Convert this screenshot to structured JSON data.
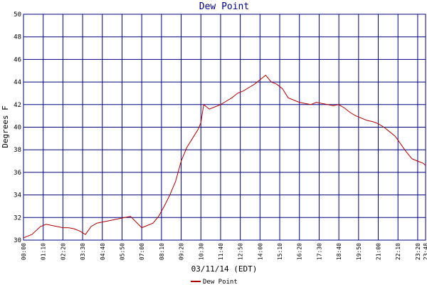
{
  "chart_data": {
    "type": "line",
    "title": "Dew Point",
    "xlabel": "03/11/14 (EDT)",
    "ylabel": "Degrees F",
    "ylim": [
      30,
      50
    ],
    "yticks": [
      30,
      32,
      34,
      36,
      38,
      40,
      42,
      44,
      46,
      48,
      50
    ],
    "xticks": [
      "00:00",
      "01:10",
      "02:20",
      "03:30",
      "04:40",
      "05:50",
      "07:00",
      "08:10",
      "09:20",
      "10:30",
      "11:40",
      "12:50",
      "14:00",
      "15:10",
      "16:20",
      "17:30",
      "18:40",
      "19:50",
      "21:00",
      "22:10",
      "23:20",
      "23:48"
    ],
    "grid": true,
    "legend_position": "bottom-center",
    "colors": {
      "line": "#aa0000",
      "grid": "#000080",
      "title": "#000080"
    },
    "series": [
      {
        "name": "Dew Point",
        "x": [
          "00:00",
          "00:30",
          "01:00",
          "01:20",
          "01:40",
          "02:00",
          "02:20",
          "02:40",
          "03:00",
          "03:20",
          "03:40",
          "04:00",
          "04:20",
          "04:40",
          "05:00",
          "05:20",
          "05:40",
          "06:00",
          "06:20",
          "06:40",
          "07:00",
          "07:20",
          "07:40",
          "08:00",
          "08:20",
          "08:40",
          "09:00",
          "09:20",
          "09:40",
          "10:00",
          "10:20",
          "10:30",
          "10:40",
          "11:00",
          "11:20",
          "11:40",
          "12:00",
          "12:20",
          "12:40",
          "13:00",
          "13:20",
          "13:40",
          "14:00",
          "14:20",
          "14:40",
          "15:00",
          "15:20",
          "15:40",
          "16:00",
          "16:20",
          "16:40",
          "17:00",
          "17:20",
          "17:40",
          "18:00",
          "18:20",
          "18:40",
          "19:00",
          "19:20",
          "19:40",
          "20:00",
          "20:20",
          "20:40",
          "21:00",
          "21:20",
          "21:40",
          "22:00",
          "22:20",
          "22:40",
          "23:00",
          "23:20",
          "23:40",
          "23:48"
        ],
        "values": [
          30.2,
          30.5,
          31.2,
          31.4,
          31.3,
          31.2,
          31.1,
          31.1,
          31.0,
          30.8,
          30.5,
          31.2,
          31.5,
          31.6,
          31.7,
          31.8,
          31.9,
          32.0,
          32.1,
          31.6,
          31.1,
          31.3,
          31.5,
          32.1,
          33.0,
          34.0,
          35.2,
          37.0,
          38.2,
          39.0,
          39.8,
          40.4,
          42.0,
          41.6,
          41.8,
          42.0,
          42.3,
          42.6,
          43.0,
          43.2,
          43.5,
          43.8,
          44.2,
          44.6,
          44.0,
          43.8,
          43.4,
          42.6,
          42.4,
          42.2,
          42.1,
          42.0,
          42.2,
          42.1,
          42.0,
          41.9,
          42.0,
          41.7,
          41.3,
          41.0,
          40.8,
          40.6,
          40.5,
          40.3,
          40.0,
          39.6,
          39.2,
          38.5,
          37.8,
          37.2,
          37.0,
          36.8,
          36.6
        ]
      }
    ]
  }
}
